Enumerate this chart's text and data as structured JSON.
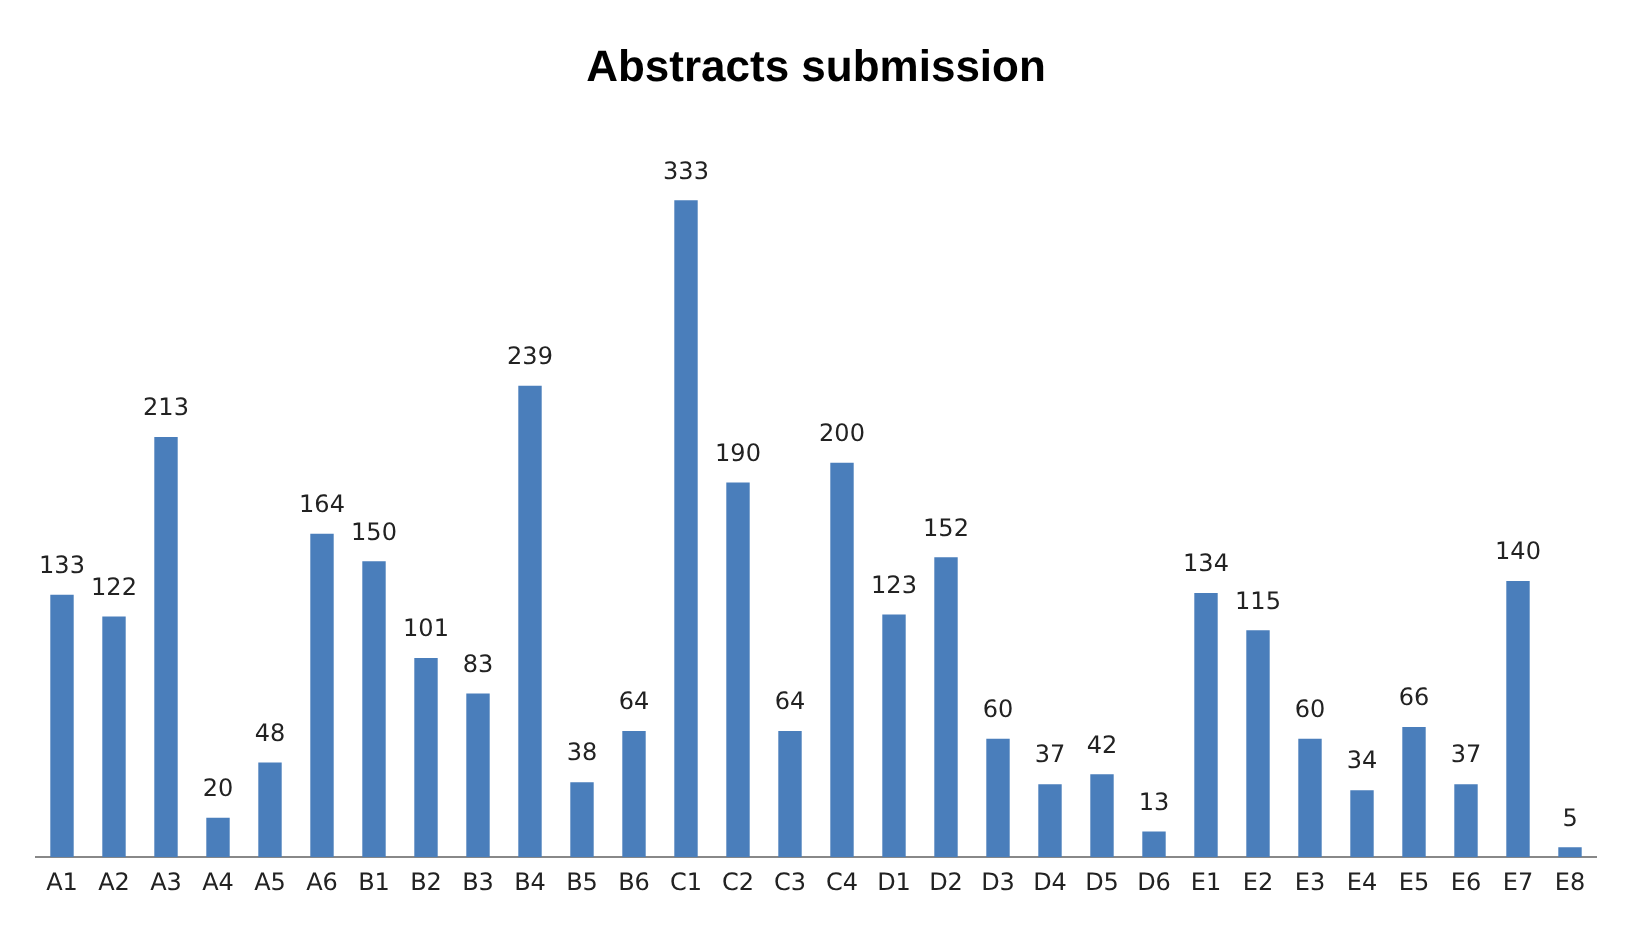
{
  "chart_data": {
    "type": "bar",
    "title": "Abstracts submission",
    "categories": [
      "A1",
      "A2",
      "A3",
      "A4",
      "A5",
      "A6",
      "B1",
      "B2",
      "B3",
      "B4",
      "B5",
      "B6",
      "C1",
      "C2",
      "C3",
      "C4",
      "D1",
      "D2",
      "D3",
      "D4",
      "D5",
      "D6",
      "E1",
      "E2",
      "E3",
      "E4",
      "E5",
      "E6",
      "E7",
      "E8"
    ],
    "values": [
      133,
      122,
      213,
      20,
      48,
      164,
      150,
      101,
      83,
      239,
      38,
      64,
      333,
      190,
      64,
      200,
      123,
      152,
      60,
      37,
      42,
      13,
      134,
      115,
      60,
      34,
      66,
      37,
      140,
      5
    ],
    "color": "#4a7ebb",
    "data_labels": true,
    "grid": false,
    "legend": false
  }
}
